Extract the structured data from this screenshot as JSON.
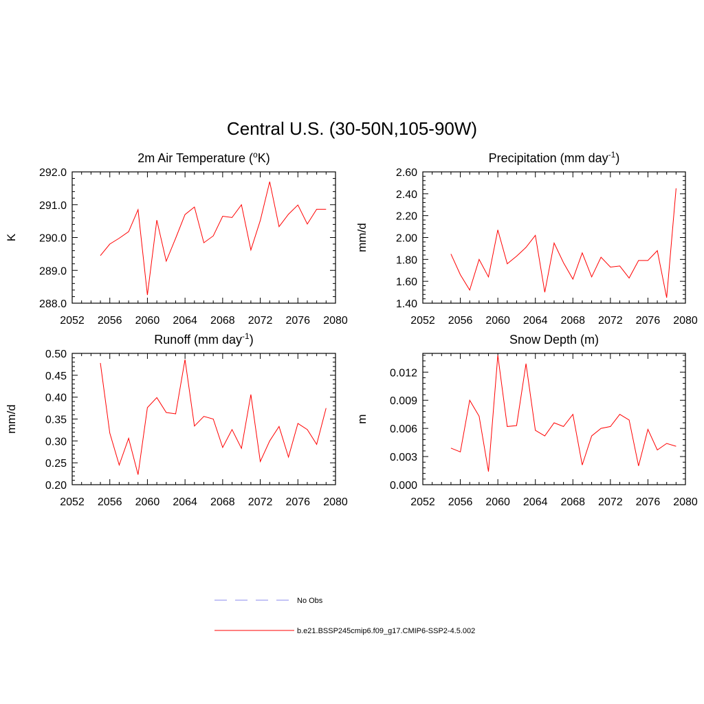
{
  "page_title": "Central U.S. (30-50N,105-90W)",
  "legend": [
    {
      "label": "No Obs",
      "color": "#a0a0f0",
      "dash": true
    },
    {
      "label": "b.e21.BSSP245cmip6.f09_g17.CMIP6-SSP2-4.5.002",
      "color": "#ff0000",
      "dash": false
    }
  ],
  "chart_data": [
    {
      "type": "line",
      "title": "2m Air Temperature (",
      "title_sup": "o",
      "title_tail": "K)",
      "ylabel": "K",
      "xlim": [
        2052,
        2080
      ],
      "xticks": [
        "2052",
        "2056",
        "2060",
        "2064",
        "2068",
        "2072",
        "2076",
        "2080"
      ],
      "ylim": [
        288.0,
        292.0
      ],
      "yticks": [
        "288.0",
        "289.0",
        "290.0",
        "291.0",
        "292.0"
      ],
      "series": [
        {
          "color": "#ff0000",
          "x": [
            2055,
            2056,
            2057,
            2058,
            2059,
            2060,
            2061,
            2062,
            2063,
            2064,
            2065,
            2066,
            2067,
            2068,
            2069,
            2070,
            2071,
            2072,
            2073,
            2074,
            2075,
            2076,
            2077,
            2078,
            2079
          ],
          "values": [
            289.45,
            289.8,
            289.98,
            290.18,
            290.85,
            288.25,
            290.53,
            289.28,
            289.98,
            290.7,
            290.93,
            289.84,
            290.05,
            290.65,
            290.61,
            291.0,
            289.62,
            290.52,
            291.7,
            290.33,
            290.71,
            290.99,
            290.41,
            290.86,
            290.86
          ]
        }
      ]
    },
    {
      "type": "line",
      "title": "Precipitation (mm day",
      "title_sup": "-1",
      "title_tail": ")",
      "ylabel": "mm/d",
      "xlim": [
        2052,
        2080
      ],
      "xticks": [
        "2052",
        "2056",
        "2060",
        "2064",
        "2068",
        "2072",
        "2076",
        "2080"
      ],
      "ylim": [
        1.4,
        2.6
      ],
      "yticks": [
        "1.40",
        "1.60",
        "1.80",
        "2.00",
        "2.20",
        "2.40",
        "2.60"
      ],
      "series": [
        {
          "color": "#ff0000",
          "x": [
            2055,
            2056,
            2057,
            2058,
            2059,
            2060,
            2061,
            2062,
            2063,
            2064,
            2065,
            2066,
            2067,
            2068,
            2069,
            2070,
            2071,
            2072,
            2073,
            2074,
            2075,
            2076,
            2077,
            2078,
            2079
          ],
          "values": [
            1.85,
            1.66,
            1.52,
            1.8,
            1.64,
            2.07,
            1.76,
            1.83,
            1.91,
            2.02,
            1.5,
            1.95,
            1.77,
            1.62,
            1.86,
            1.64,
            1.82,
            1.73,
            1.74,
            1.63,
            1.79,
            1.79,
            1.88,
            1.45,
            2.45
          ]
        }
      ]
    },
    {
      "type": "line",
      "title": "Runoff (mm day",
      "title_sup": "-1",
      "title_tail": ")",
      "ylabel": "mm/d",
      "xlim": [
        2052,
        2080
      ],
      "xticks": [
        "2052",
        "2056",
        "2060",
        "2064",
        "2068",
        "2072",
        "2076",
        "2080"
      ],
      "ylim": [
        0.2,
        0.5
      ],
      "yticks": [
        "0.20",
        "0.25",
        "0.30",
        "0.35",
        "0.40",
        "0.45",
        "0.50"
      ],
      "series": [
        {
          "color": "#ff0000",
          "x": [
            2055,
            2056,
            2057,
            2058,
            2059,
            2060,
            2061,
            2062,
            2063,
            2064,
            2065,
            2066,
            2067,
            2068,
            2069,
            2070,
            2071,
            2072,
            2073,
            2074,
            2075,
            2076,
            2077,
            2078,
            2079
          ],
          "values": [
            0.478,
            0.318,
            0.245,
            0.306,
            0.223,
            0.376,
            0.399,
            0.365,
            0.362,
            0.486,
            0.334,
            0.356,
            0.35,
            0.285,
            0.326,
            0.283,
            0.406,
            0.253,
            0.3,
            0.333,
            0.263,
            0.34,
            0.326,
            0.292,
            0.375
          ]
        }
      ]
    },
    {
      "type": "line",
      "title": "Snow Depth (m)",
      "title_sup": "",
      "title_tail": "",
      "ylabel": "m",
      "xlim": [
        2052,
        2080
      ],
      "xticks": [
        "2052",
        "2056",
        "2060",
        "2064",
        "2068",
        "2072",
        "2076",
        "2080"
      ],
      "ylim": [
        0.0,
        0.014
      ],
      "yticks": [
        "0.000",
        "0.003",
        "0.006",
        "0.009",
        "0.012"
      ],
      "ytick_values": [
        0.0,
        0.003,
        0.006,
        0.009,
        0.012
      ],
      "series": [
        {
          "color": "#ff0000",
          "x": [
            2055,
            2056,
            2057,
            2058,
            2059,
            2060,
            2061,
            2062,
            2063,
            2064,
            2065,
            2066,
            2067,
            2068,
            2069,
            2070,
            2071,
            2072,
            2073,
            2074,
            2075,
            2076,
            2077,
            2078,
            2079
          ],
          "values": [
            0.0039,
            0.0035,
            0.009,
            0.0073,
            0.0014,
            0.0138,
            0.0062,
            0.0063,
            0.0129,
            0.0058,
            0.0052,
            0.0066,
            0.0062,
            0.0075,
            0.0021,
            0.0052,
            0.006,
            0.0062,
            0.0075,
            0.0069,
            0.002,
            0.0059,
            0.0037,
            0.0044,
            0.0041
          ]
        }
      ]
    }
  ]
}
